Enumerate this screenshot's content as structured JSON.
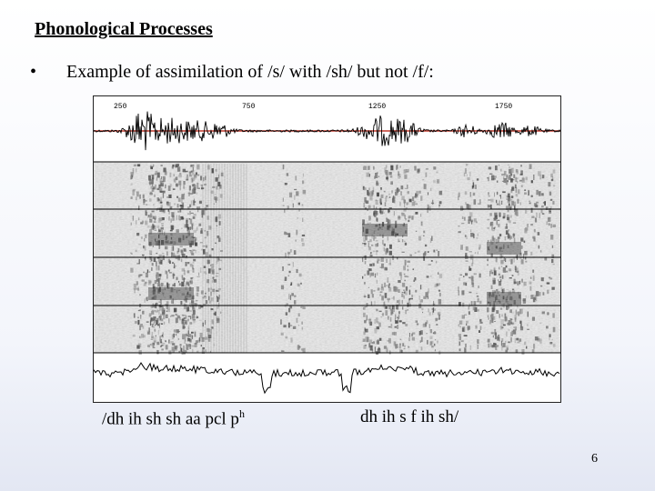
{
  "slide": {
    "title": "Phonological Processes",
    "bullet_symbol": "•",
    "bullet_text": "Example of assimilation of /s/ with /sh/ but not /f/:",
    "page_number": "6"
  },
  "figure": {
    "time_labels": [
      "250",
      "750",
      "1250",
      "1750"
    ],
    "waveform_baseline_color": "#c0392b",
    "transcription": {
      "part1_main": "/dh ih sh sh   aa  pcl p",
      "part1_sup": "h",
      "part2": "dh ih  s    f   ih   sh/"
    }
  }
}
